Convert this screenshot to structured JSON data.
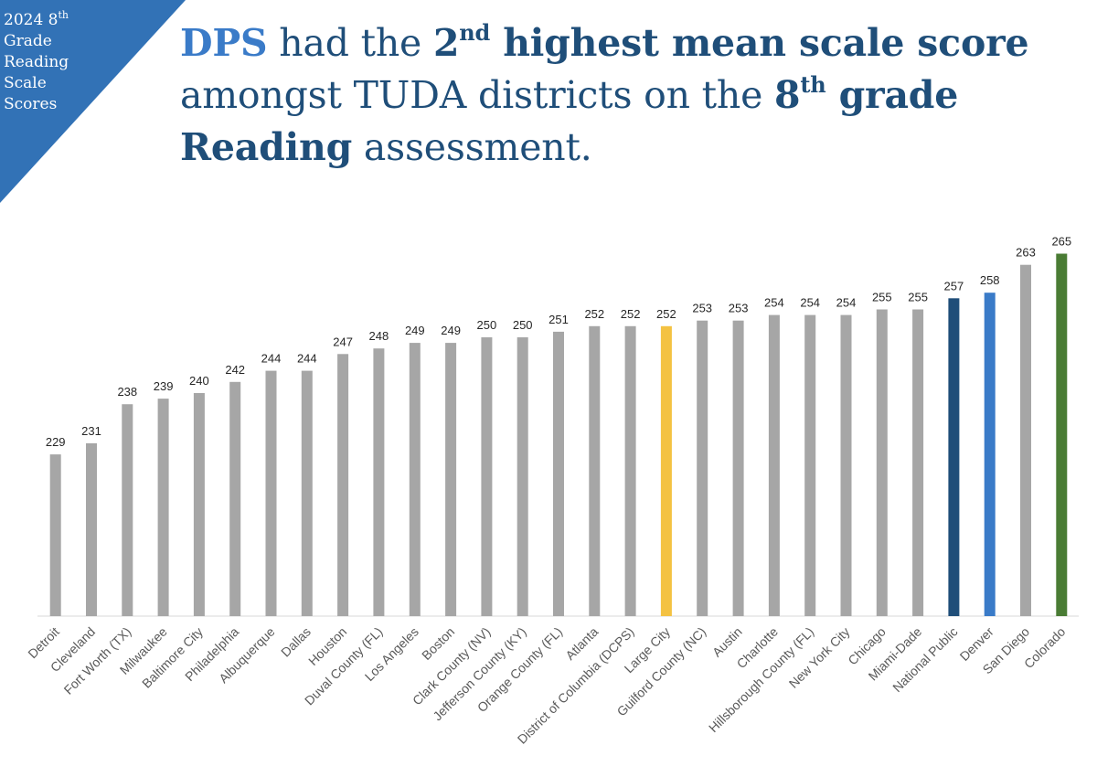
{
  "corner": {
    "line1": "2024 8",
    "line1_sup": "th",
    "line2": "Grade",
    "line3": "Reading",
    "line4": "Scale",
    "line5": "Scores"
  },
  "headline": {
    "part1": "DPS",
    "part2": " had the ",
    "part3": "2",
    "part3_sup": "nd",
    "part4": " highest mean scale score",
    "part5": "amongst TUDA districts on the ",
    "part6": "8",
    "part6_sup": "th",
    "part7": " grade",
    "part8": "Reading",
    "part9": " assessment."
  },
  "colors": {
    "corner": "#3272b6",
    "title": "#1f4e79",
    "title_accent": "#3a7bc8",
    "default_bar": "#a6a6a6",
    "large_city": "#f4c242",
    "national_public": "#1f4e79",
    "denver": "#3a7bc8",
    "colorado": "#4a7c34"
  },
  "chart_data": {
    "type": "bar",
    "title": "2024 8th Grade Reading Scale Scores",
    "xlabel": "",
    "ylabel": "",
    "ylim": [
      200,
      270
    ],
    "grid": false,
    "legend": "none",
    "categories": [
      "Detroit",
      "Cleveland",
      "Fort Worth (TX)",
      "Milwaukee",
      "Baltimore City",
      "Philadelphia",
      "Albuquerque",
      "Dallas",
      "Houston",
      "Duval County (FL)",
      "Los Angeles",
      "Boston",
      "Clark County (NV)",
      "Jefferson County (KY)",
      "Orange County (FL)",
      "Atlanta",
      "District of Columbia (DCPS)",
      "Large City",
      "Guilford County (NC)",
      "Austin",
      "Charlotte",
      "Hillsborough County (FL)",
      "New York City",
      "Chicago",
      "Miami-Dade",
      "National Public",
      "Denver",
      "San Diego",
      "Colorado"
    ],
    "values": [
      229,
      231,
      238,
      239,
      240,
      242,
      244,
      244,
      247,
      248,
      249,
      249,
      250,
      250,
      251,
      252,
      252,
      252,
      253,
      253,
      254,
      254,
      254,
      255,
      255,
      257,
      258,
      263,
      265
    ],
    "value_labels": [
      "229",
      "231",
      "238",
      "239",
      "240",
      "242",
      "244",
      "244",
      "247",
      "248",
      "249",
      "249",
      "250",
      "250",
      "251",
      "252",
      "252",
      "252",
      "253",
      "253",
      "254",
      "254",
      "254",
      "255",
      "255",
      "257",
      "258",
      "263",
      "265"
    ],
    "highlight": {
      "Large City": "#f4c242",
      "National Public": "#1f4e79",
      "Denver": "#3a7bc8",
      "Colorado": "#4a7c34"
    }
  }
}
